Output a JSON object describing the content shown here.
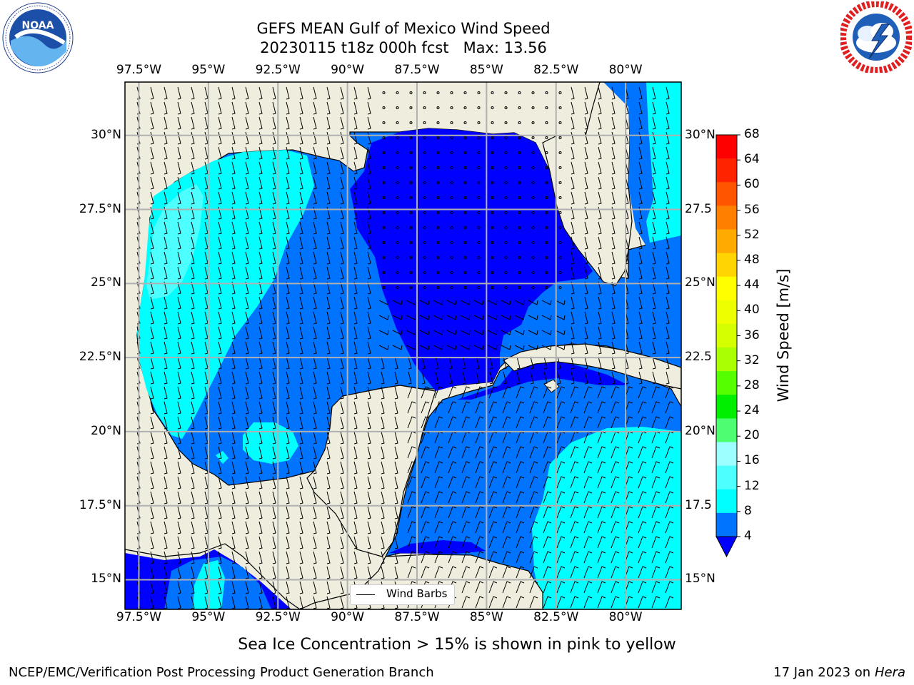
{
  "title": {
    "line1": "GEFS MEAN Gulf of Mexico Wind Speed",
    "line2": "20230115 t18z 000h fcst   Max: 13.56"
  },
  "map": {
    "lon_ticks": [
      "97.5°W",
      "95°W",
      "92.5°W",
      "90°W",
      "87.5°W",
      "85°W",
      "82.5°W",
      "80°W"
    ],
    "lat_ticks_left": [
      "30°N",
      "27.5°N",
      "25°N",
      "22.5°N",
      "20°N",
      "17.5°N",
      "15°N"
    ],
    "lat_ticks_right": [
      "30°N",
      "27.5",
      "25°N",
      "22.5",
      "20°N",
      "17.5",
      "15°N"
    ],
    "lon_range": [
      -98,
      -78
    ],
    "lat_range": [
      14,
      31.8
    ],
    "land_color": "#efedde",
    "ocean_colors": {
      "4-8": "#0073ff",
      "8-12": "#00ffff",
      "12-16": "#4dffff",
      "below_4": "#0000ff"
    }
  },
  "legend": {
    "label": "Wind Barbs"
  },
  "colorbar": {
    "label": "Wind Speed [m/s]",
    "ticks": [
      "68",
      "64",
      "60",
      "56",
      "52",
      "48",
      "44",
      "40",
      "36",
      "32",
      "28",
      "24",
      "20",
      "16",
      "12",
      "8",
      "4"
    ],
    "colors": [
      "#ff0000",
      "#ff2400",
      "#ff5500",
      "#ff8000",
      "#ffaa00",
      "#ffd400",
      "#ffff00",
      "#eeff00",
      "#d4ff00",
      "#aaff00",
      "#55ff00",
      "#00ee00",
      "#4dff70",
      "#9dffff",
      "#4dffff",
      "#00ffff",
      "#0073ff"
    ],
    "under_color": "#0000ff"
  },
  "logos": {
    "left": "NOAA",
    "right": "NATIONAL WEATHER SERVICE"
  },
  "caption": "Sea Ice Concentration > 15% is shown in pink to yellow",
  "footer": {
    "left": "NCEP/EMC/Verification Post Processing Product Generation Branch",
    "right_date": "17 Jan 2023 on ",
    "right_host": "Hera"
  }
}
